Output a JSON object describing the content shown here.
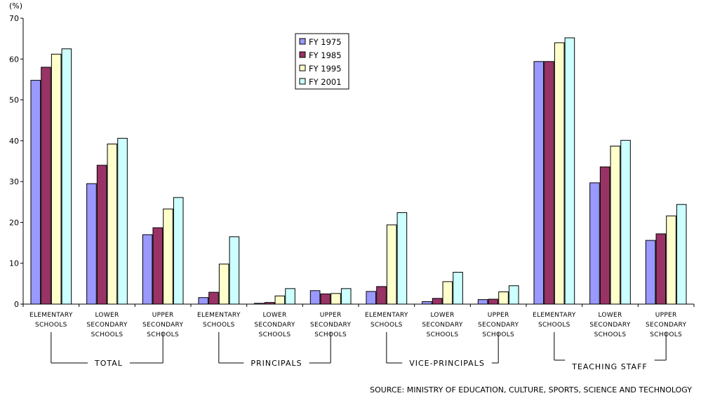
{
  "chart_data": {
    "type": "bar",
    "ylabel": "(%)",
    "ylim": [
      0,
      70
    ],
    "yticks": [
      0,
      10,
      20,
      30,
      40,
      50,
      60,
      70
    ],
    "grid": false,
    "legend_position": "top-center",
    "categories": [
      [
        "ELEMENTARY",
        "SCHOOLS"
      ],
      [
        "LOWER",
        "SECONDARY",
        "SCHOOLS"
      ],
      [
        "UPPER",
        "SECONDARY",
        "SCHOOLS"
      ],
      [
        "ELEMENTARY",
        "SCHOOLS"
      ],
      [
        "LOWER",
        "SECONDARY",
        "SCHOOLS"
      ],
      [
        "UPPER",
        "SECONDARY",
        "SCHOOLS"
      ],
      [
        "ELEMENTARY",
        "SCHOOLS"
      ],
      [
        "LOWER",
        "SECONDARY",
        "SCHOOLS"
      ],
      [
        "UPPER",
        "SECONDARY",
        "SCHOOLS"
      ],
      [
        "ELEMENTARY",
        "SCHOOLS"
      ],
      [
        "LOWER",
        "SECONDARY",
        "SCHOOLS"
      ],
      [
        "UPPER",
        "SECONDARY",
        "SCHOOLS"
      ]
    ],
    "groups": [
      {
        "label": "TOTAL",
        "categories": [
          0,
          1,
          2
        ]
      },
      {
        "label": "PRINCIPALS",
        "categories": [
          3,
          4,
          5
        ]
      },
      {
        "label": "VICE-PRINCIPALS",
        "categories": [
          6,
          7,
          8
        ]
      },
      {
        "label": "TEACHING   STAFF",
        "categories": [
          9,
          10,
          11
        ]
      }
    ],
    "series": [
      {
        "name": "FY 1975",
        "color": "#9999ff",
        "values": [
          54.8,
          29.5,
          17.0,
          1.6,
          0.2,
          3.3,
          3.1,
          0.6,
          1.1,
          59.4,
          29.7,
          15.6
        ]
      },
      {
        "name": "FY 1985",
        "color": "#993366",
        "values": [
          58.0,
          34.0,
          18.7,
          2.9,
          0.4,
          2.5,
          4.3,
          1.4,
          1.2,
          59.4,
          33.6,
          17.2
        ]
      },
      {
        "name": "FY 1995",
        "color": "#ffffcc",
        "values": [
          61.2,
          39.2,
          23.3,
          9.8,
          2.0,
          2.6,
          19.4,
          5.5,
          3.0,
          64.0,
          38.7,
          21.6
        ]
      },
      {
        "name": "FY 2001",
        "color": "#ccffff",
        "values": [
          62.5,
          40.6,
          26.1,
          16.5,
          3.8,
          3.8,
          22.4,
          7.8,
          4.5,
          65.2,
          40.1,
          24.4
        ]
      }
    ],
    "source": "SOURCE: MINISTRY OF EDUCATION, CULTURE, SPORTS, SCIENCE AND TECHNOLOGY"
  }
}
